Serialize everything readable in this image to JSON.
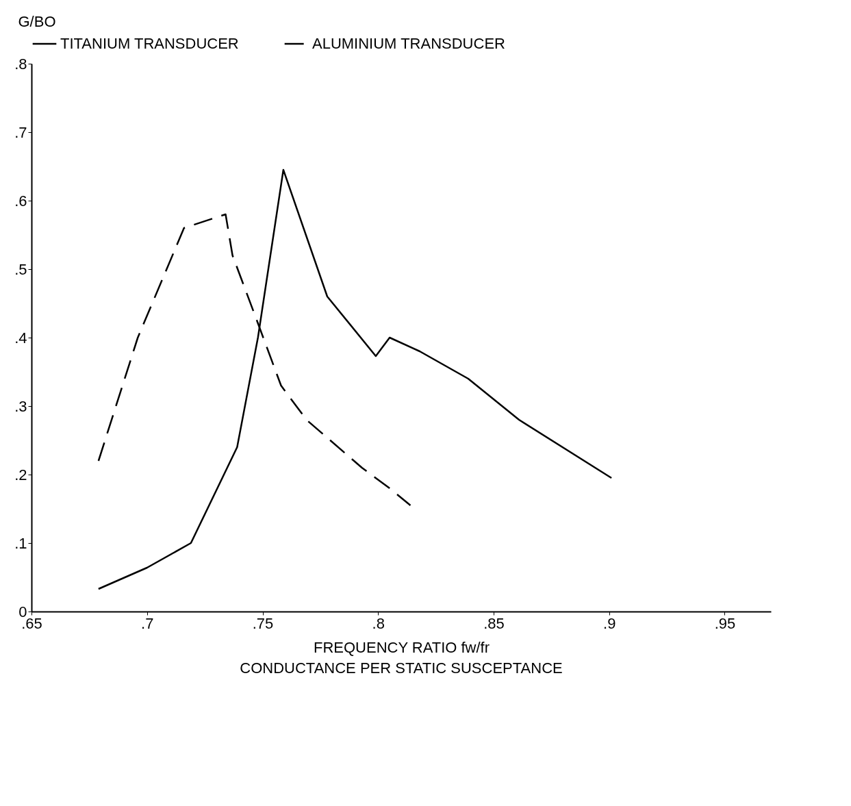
{
  "chart_data": {
    "type": "line",
    "xlabel": "FREQUENCY RATIO fw/fr",
    "ylabel": "G/BO",
    "annotations": [
      "CONDUCTANCE PER STATIC SUSCEPTANCE"
    ],
    "xlim": [
      0.65,
      0.97
    ],
    "ylim": [
      0,
      0.8
    ],
    "xticks": [
      {
        "value": 0.65,
        "label": ".65"
      },
      {
        "value": 0.7,
        "label": ".7"
      },
      {
        "value": 0.75,
        "label": ".75"
      },
      {
        "value": 0.8,
        "label": ".8"
      },
      {
        "value": 0.85,
        "label": ".85"
      },
      {
        "value": 0.9,
        "label": ".9"
      },
      {
        "value": 0.95,
        "label": ".95"
      }
    ],
    "yticks": [
      0,
      {
        "value": 0.1,
        "label": ".1"
      },
      {
        "value": 0.2,
        "label": ".2"
      },
      {
        "value": 0.3,
        "label": ".3"
      },
      {
        "value": 0.4,
        "label": ".4"
      },
      {
        "value": 0.5,
        "label": ".5"
      },
      {
        "value": 0.6,
        "label": ".6"
      },
      {
        "value": 0.7,
        "label": ".7"
      },
      {
        "value": 0.8,
        "label": ".8"
      }
    ],
    "grid": false,
    "legend": "top",
    "marker": "none",
    "series": [
      {
        "name": "TITANIUM TRANSDUCER",
        "color": "#000000",
        "line_style": "solid",
        "x": [
          0.679,
          0.7,
          0.719,
          0.739,
          0.748,
          0.759,
          0.778,
          0.799,
          0.805,
          0.818,
          0.839,
          0.861,
          0.901
        ],
        "values": [
          0.033,
          0.064,
          0.1,
          0.24,
          0.4,
          0.645,
          0.46,
          0.373,
          0.4,
          0.38,
          0.34,
          0.28,
          0.195
        ]
      },
      {
        "name": "ALUMINIUM TRANSDUCER",
        "color": "#000000",
        "line_style": "dashed",
        "x": [
          0.679,
          0.696,
          0.716,
          0.734,
          0.737,
          0.747,
          0.758,
          0.769,
          0.793,
          0.805,
          0.814
        ],
        "values": [
          0.22,
          0.4,
          0.56,
          0.58,
          0.52,
          0.43,
          0.33,
          0.28,
          0.21,
          0.18,
          0.155
        ]
      }
    ]
  }
}
